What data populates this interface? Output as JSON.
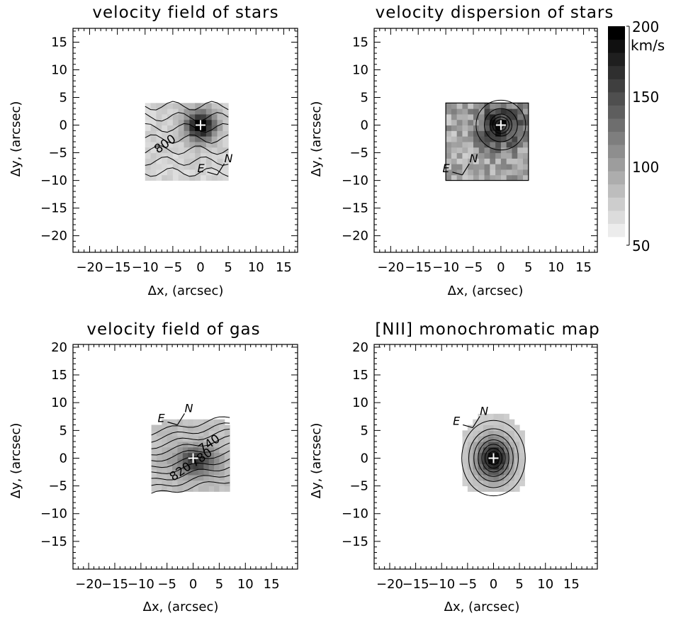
{
  "chart_data": [
    {
      "type": "heatmap",
      "title": "velocity field of stars",
      "xlabel": "Δx, (arcsec)",
      "ylabel": "Δy, (arcsec)",
      "xlim": [
        -23,
        17.5
      ],
      "ylim": [
        -23,
        17.5
      ],
      "xticks": [
        -20,
        -15,
        -10,
        -5,
        0,
        5,
        10,
        15
      ],
      "yticks": [
        -20,
        -15,
        -10,
        -5,
        0,
        5,
        10,
        15
      ],
      "xtick_labels": [
        "−20",
        "−15",
        "−10",
        "−5",
        "0",
        "5",
        "10",
        "15"
      ],
      "ytick_labels": [
        "−20",
        "−15",
        "−10",
        "−5",
        "0",
        "5",
        "10",
        "15"
      ],
      "field_extent": {
        "x": [
          -10,
          5
        ],
        "y": [
          -10,
          4
        ]
      },
      "contour_labels": [
        {
          "text": "800",
          "x": -6,
          "y": -4
        }
      ],
      "nucleus": [
        0,
        0
      ],
      "compass": [
        "N",
        "E"
      ]
    },
    {
      "type": "heatmap",
      "title": "velocity dispersion of stars",
      "xlabel": "Δx, (arcsec)",
      "ylabel": "Δy, (arcsec)",
      "xlim": [
        -23,
        17.5
      ],
      "ylim": [
        -23,
        17.5
      ],
      "xticks": [
        -20,
        -15,
        -10,
        -5,
        0,
        5,
        10,
        15
      ],
      "yticks": [
        -20,
        -15,
        -10,
        -5,
        0,
        5,
        10,
        15
      ],
      "xtick_labels": [
        "−20",
        "−15",
        "−10",
        "−5",
        "0",
        "5",
        "10",
        "15"
      ],
      "ytick_labels": [
        "−20",
        "−15",
        "−10",
        "−5",
        "0",
        "5",
        "10",
        "15"
      ],
      "field_extent": {
        "x": [
          -10,
          5
        ],
        "y": [
          -10,
          4
        ]
      },
      "nucleus": [
        0,
        0
      ],
      "compass": [
        "N",
        "E"
      ],
      "colorbar": {
        "min": 50,
        "max": 200,
        "ticks": [
          50,
          100,
          150,
          200
        ],
        "unit": "km/s",
        "grayscale": true
      }
    },
    {
      "type": "heatmap",
      "title": "velocity field of gas",
      "xlabel": "Δx, (arcsec)",
      "ylabel": "Δy, (arcsec)",
      "xlim": [
        -23,
        20
      ],
      "ylim": [
        -20,
        20.5
      ],
      "xticks": [
        -20,
        -15,
        -10,
        -5,
        0,
        5,
        10,
        15
      ],
      "yticks": [
        -15,
        -10,
        -5,
        0,
        5,
        10,
        15,
        20
      ],
      "xtick_labels": [
        "−20",
        "−15",
        "−10",
        "−5",
        "0",
        "5",
        "10",
        "15"
      ],
      "ytick_labels": [
        "−15",
        "−10",
        "−5",
        "0",
        "5",
        "10",
        "15",
        "20"
      ],
      "field_extent": {
        "x": [
          -8,
          7
        ],
        "y": [
          -6,
          7
        ]
      },
      "contour_labels": [
        {
          "text": "740",
          "x": 3.5,
          "y": 2
        },
        {
          "text": "780",
          "x": 2,
          "y": -0.5
        },
        {
          "text": "820",
          "x": -2,
          "y": -3
        }
      ],
      "nucleus": [
        0,
        0
      ],
      "compass": [
        "N",
        "E"
      ]
    },
    {
      "type": "heatmap",
      "title": "[NII] monochromatic map",
      "xlabel": "Δx, (arcsec)",
      "ylabel": "Δy, (arcsec)",
      "xlim": [
        -23,
        20
      ],
      "ylim": [
        -20,
        20.5
      ],
      "xticks": [
        -20,
        -15,
        -10,
        -5,
        0,
        5,
        10,
        15
      ],
      "yticks": [
        -15,
        -10,
        -5,
        0,
        5,
        10,
        15,
        20
      ],
      "xtick_labels": [
        "−20",
        "−15",
        "−10",
        "−5",
        "0",
        "5",
        "10",
        "15"
      ],
      "ytick_labels": [
        "−15",
        "−10",
        "−5",
        "0",
        "5",
        "10",
        "15",
        "20"
      ],
      "field_extent": {
        "x": [
          -6,
          6
        ],
        "y": [
          -6,
          8
        ]
      },
      "nucleus": [
        0,
        0
      ],
      "compass": [
        "N",
        "E"
      ]
    }
  ]
}
